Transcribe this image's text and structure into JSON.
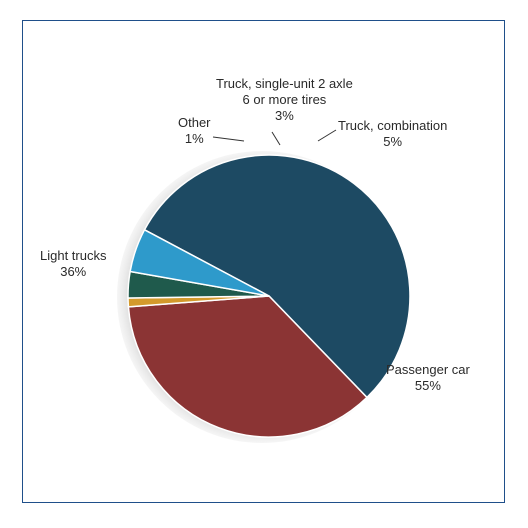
{
  "chart_data": {
    "type": "pie",
    "title": "",
    "slices": [
      {
        "name": "Passenger car",
        "value": 55,
        "value_label": "55%",
        "color": "#1d4a63"
      },
      {
        "name": "Light trucks",
        "value": 36,
        "value_label": "36%",
        "color": "#8b3434"
      },
      {
        "name": "Other",
        "value": 1,
        "value_label": "1%",
        "color": "#d39a2c"
      },
      {
        "name": "Truck, single-unit 2 axle",
        "name_line2": "6 or more tires",
        "value": 3,
        "value_label": "3%",
        "color": "#1f5a4c"
      },
      {
        "name": "Truck, combination",
        "value": 5,
        "value_label": "5%",
        "color": "#2e9acb"
      }
    ]
  }
}
